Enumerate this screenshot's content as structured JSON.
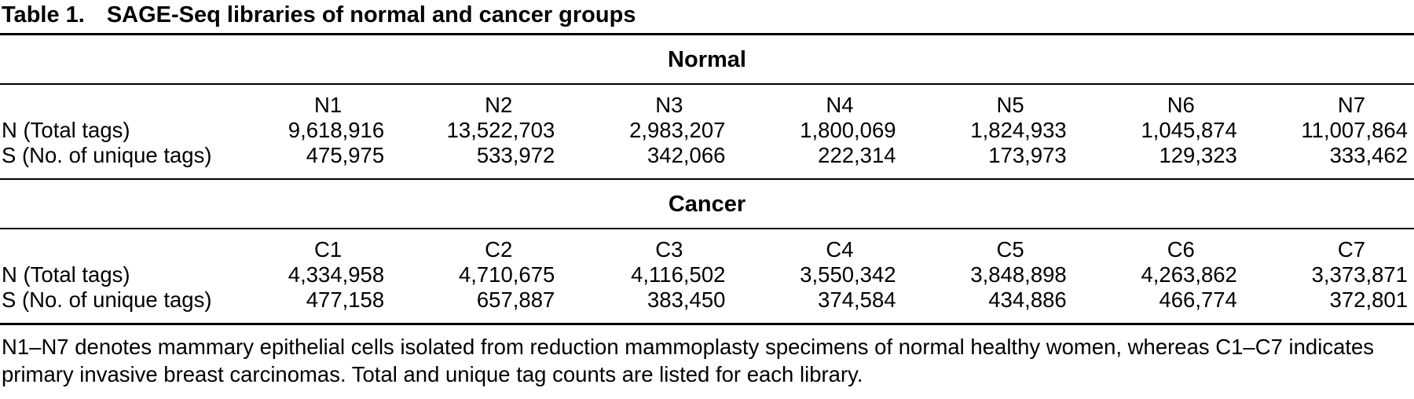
{
  "table": {
    "label": "Table 1.",
    "title": "SAGE-Seq libraries of normal and cancer groups",
    "sections": [
      {
        "name": "Normal",
        "columns": [
          "N1",
          "N2",
          "N3",
          "N4",
          "N5",
          "N6",
          "N7"
        ],
        "rows": [
          {
            "label": "N (Total tags)",
            "values": [
              "9,618,916",
              "13,522,703",
              "2,983,207",
              "1,800,069",
              "1,824,933",
              "1,045,874",
              "11,007,864"
            ]
          },
          {
            "label": "S (No. of unique tags)",
            "values": [
              "475,975",
              "533,972",
              "342,066",
              "222,314",
              "173,973",
              "129,323",
              "333,462"
            ]
          }
        ]
      },
      {
        "name": "Cancer",
        "columns": [
          "C1",
          "C2",
          "C3",
          "C4",
          "C5",
          "C6",
          "C7"
        ],
        "rows": [
          {
            "label": "N (Total tags)",
            "values": [
              "4,334,958",
              "4,710,675",
              "4,116,502",
              "3,550,342",
              "3,848,898",
              "4,263,862",
              "3,373,871"
            ]
          },
          {
            "label": "S (No. of unique tags)",
            "values": [
              "477,158",
              "657,887",
              "383,450",
              "374,584",
              "434,886",
              "466,774",
              "372,801"
            ]
          }
        ]
      }
    ],
    "footnote": "N1–N7 denotes mammary epithelial cells isolated from reduction mammoplasty specimens of normal healthy women, whereas C1–C7 indicates primary invasive breast carcinomas. Total and unique tag counts are listed for each library.",
    "text_color": "#000000",
    "background_color": "#ffffff"
  }
}
